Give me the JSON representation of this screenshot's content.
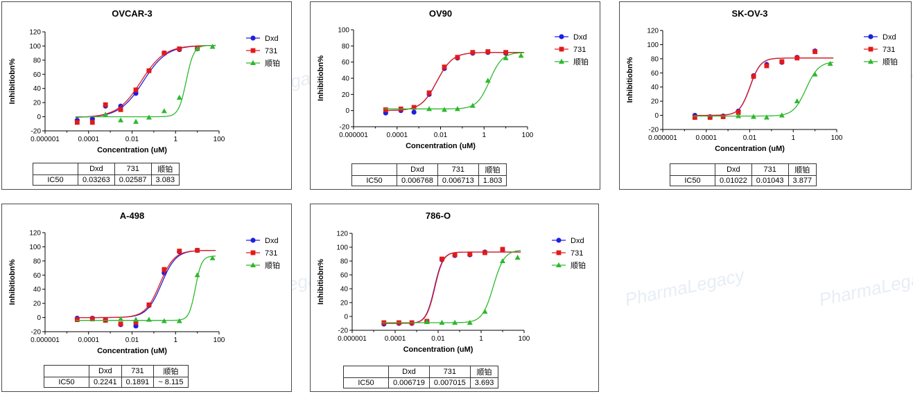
{
  "watermark": "PharmaLegacy",
  "xlabel": "Concentration (uM)",
  "ylabel": "Inhibitiobn%",
  "colors": {
    "dxd": "#1f1fe0",
    "c731": "#e21a1a",
    "cis": "#2db82d"
  },
  "chart_data": [
    {
      "type": "scatter",
      "title": "OVCAR-3",
      "xlabel": "Concentration (uM)",
      "ylabel": "Inhibitiobn%",
      "xscale": "log",
      "xlim": [
        1e-06,
        100
      ],
      "ylim": [
        -20,
        120
      ],
      "x_ticks": [
        "0.000001",
        "0.0001",
        "0.01",
        "1",
        "100"
      ],
      "y_ticks": [
        "-20",
        "0",
        "20",
        "40",
        "60",
        "80",
        "100",
        "120"
      ],
      "legend_position": "top-right",
      "series": [
        {
          "name": "Dxd",
          "x": [
            3e-05,
            0.00015,
            0.0006,
            0.003,
            0.015,
            0.06,
            0.3,
            1.5,
            10
          ],
          "y": [
            -5,
            -3,
            15,
            15,
            33,
            65,
            90,
            95,
            96
          ],
          "fit": {
            "bottom": -1,
            "top": 101,
            "ic50": 0.03263,
            "hill": 0.8
          }
        },
        {
          "name": "731",
          "x": [
            3e-05,
            0.00015,
            0.0006,
            0.003,
            0.015,
            0.06,
            0.3,
            1.5,
            10
          ],
          "y": [
            -8,
            -8,
            17,
            10,
            38,
            65,
            90,
            96,
            97
          ],
          "fit": {
            "bottom": -1,
            "top": 101,
            "ic50": 0.02587,
            "hill": 0.8
          }
        },
        {
          "name": "顺铂",
          "x": [
            0.0006,
            0.003,
            0.015,
            0.06,
            0.3,
            1.5,
            10,
            50
          ],
          "y": [
            3,
            -5,
            -7,
            -1,
            8,
            27,
            96,
            99
          ],
          "fit": {
            "bottom": 0,
            "top": 101,
            "ic50": 3.083,
            "hill": 2.5
          }
        }
      ],
      "ic50_table": {
        "header": [
          "",
          "Dxd",
          "731",
          "顺铂"
        ],
        "row": [
          "IC50",
          "0.03263",
          "0.02587",
          "3.083"
        ]
      }
    },
    {
      "type": "scatter",
      "title": "OV90",
      "xlabel": "Concentration (uM)",
      "ylabel": "Inhibitiobn%",
      "xscale": "log",
      "xlim": [
        1e-06,
        100
      ],
      "ylim": [
        -20,
        100
      ],
      "x_ticks": [
        "0.000001",
        "0.0001",
        "0.01",
        "1",
        "100"
      ],
      "y_ticks": [
        "-20",
        "0",
        "20",
        "40",
        "60",
        "80",
        "100"
      ],
      "legend_position": "top-right",
      "series": [
        {
          "name": "Dxd",
          "x": [
            3e-05,
            0.00015,
            0.0006,
            0.003,
            0.015,
            0.06,
            0.3,
            1.5,
            10
          ],
          "y": [
            -3,
            0,
            -2,
            20,
            52,
            65,
            71,
            72,
            71
          ],
          "fit": {
            "bottom": 0,
            "top": 72,
            "ic50": 0.006768,
            "hill": 1.2
          }
        },
        {
          "name": "731",
          "x": [
            3e-05,
            0.00015,
            0.0006,
            0.003,
            0.015,
            0.06,
            0.3,
            1.5,
            10
          ],
          "y": [
            1,
            2,
            4,
            22,
            54,
            66,
            72,
            73,
            72
          ],
          "fit": {
            "bottom": 0,
            "top": 72,
            "ic50": 0.006713,
            "hill": 1.2
          }
        },
        {
          "name": "顺铂",
          "x": [
            0.003,
            0.015,
            0.06,
            0.3,
            1.5,
            10,
            50
          ],
          "y": [
            2,
            1,
            2,
            6,
            37,
            65,
            68
          ],
          "fit": {
            "bottom": 2,
            "top": 72,
            "ic50": 1.803,
            "hill": 1.5
          }
        }
      ],
      "ic50_table": {
        "header": [
          "",
          "Dxd",
          "731",
          "顺铂"
        ],
        "row": [
          "IC50",
          "0.006768",
          "0.006713",
          "1.803"
        ]
      }
    },
    {
      "type": "scatter",
      "title": "SK-OV-3",
      "xlabel": "Concentration (uM)",
      "ylabel": "Inhibitiobn%",
      "xscale": "log",
      "xlim": [
        1e-06,
        100
      ],
      "ylim": [
        -20,
        120
      ],
      "x_ticks": [
        "0.000001",
        "0.0001",
        "0.01",
        "1",
        "100"
      ],
      "y_ticks": [
        "-20",
        "0",
        "20",
        "40",
        "60",
        "80",
        "100",
        "120"
      ],
      "legend_position": "top-right",
      "series": [
        {
          "name": "Dxd",
          "x": [
            3e-05,
            0.00015,
            0.0006,
            0.003,
            0.015,
            0.06,
            0.3,
            1.5,
            10
          ],
          "y": [
            0,
            -2,
            -1,
            6,
            56,
            72,
            75,
            82,
            91
          ],
          "fit": {
            "bottom": 0,
            "top": 81,
            "ic50": 0.01022,
            "hill": 1.8
          }
        },
        {
          "name": "731",
          "x": [
            3e-05,
            0.00015,
            0.0006,
            0.003,
            0.015,
            0.06,
            0.3,
            1.5,
            10
          ],
          "y": [
            -3,
            -3,
            -2,
            4,
            55,
            70,
            76,
            81,
            90
          ],
          "fit": {
            "bottom": 0,
            "top": 81,
            "ic50": 0.01043,
            "hill": 1.8
          }
        },
        {
          "name": "顺铂",
          "x": [
            0.003,
            0.015,
            0.06,
            0.3,
            1.5,
            10,
            50
          ],
          "y": [
            -1,
            -2,
            -3,
            0,
            20,
            58,
            73
          ],
          "fit": {
            "bottom": -1,
            "top": 76,
            "ic50": 3.877,
            "hill": 1.5
          }
        }
      ],
      "ic50_table": {
        "header": [
          "",
          "Dxd",
          "731",
          "顺铂"
        ],
        "row": [
          "IC50",
          "0.01022",
          "0.01043",
          "3.877"
        ]
      }
    },
    {
      "type": "scatter",
      "title": "A-498",
      "xlabel": "Concentration (uM)",
      "ylabel": "Inhibitiobn%",
      "xscale": "log",
      "xlim": [
        1e-06,
        100
      ],
      "ylim": [
        -20,
        120
      ],
      "x_ticks": [
        "0.000001",
        "0.0001",
        "0.01",
        "1",
        "100"
      ],
      "y_ticks": [
        "-20",
        "0",
        "20",
        "40",
        "60",
        "80",
        "100",
        "120"
      ],
      "legend_position": "top-right",
      "series": [
        {
          "name": "Dxd",
          "x": [
            3e-05,
            0.00015,
            0.0006,
            0.003,
            0.015,
            0.06,
            0.3,
            1.5,
            10
          ],
          "y": [
            -1,
            -1,
            -3,
            -10,
            -12,
            17,
            63,
            93,
            95
          ],
          "fit": {
            "bottom": 0,
            "top": 95,
            "ic50": 0.2241,
            "hill": 1.3
          }
        },
        {
          "name": "731",
          "x": [
            3e-05,
            0.00015,
            0.0006,
            0.003,
            0.015,
            0.06,
            0.3,
            1.5,
            10
          ],
          "y": [
            -3,
            -2,
            -4,
            -9,
            -7,
            18,
            68,
            94,
            95
          ],
          "fit": {
            "bottom": 0,
            "top": 95,
            "ic50": 0.1891,
            "hill": 1.3
          }
        },
        {
          "name": "顺铂",
          "x": [
            0.003,
            0.015,
            0.06,
            0.3,
            1.5,
            10,
            50
          ],
          "y": [
            -2,
            -3,
            -3,
            -5,
            -5,
            60,
            84
          ],
          "fit": {
            "bottom": -4,
            "top": 87,
            "ic50": 8.115,
            "hill": 3
          }
        }
      ],
      "ic50_table": {
        "header": [
          "",
          "Dxd",
          "731",
          "顺铂"
        ],
        "row": [
          "IC50",
          "0.2241",
          "0.1891",
          "~ 8.115"
        ]
      }
    },
    {
      "type": "scatter",
      "title": "786-O",
      "xlabel": "Concentration (uM)",
      "ylabel": "Inhibitiobn%",
      "xscale": "log",
      "xlim": [
        1e-06,
        100
      ],
      "ylim": [
        -20,
        120
      ],
      "x_ticks": [
        "0.000001",
        "0.0001",
        "0.01",
        "1",
        "100"
      ],
      "y_ticks": [
        "-20",
        "0",
        "20",
        "40",
        "60",
        "80",
        "100",
        "120"
      ],
      "legend_position": "top-right",
      "series": [
        {
          "name": "Dxd",
          "x": [
            3e-05,
            0.00015,
            0.0006,
            0.003,
            0.015,
            0.06,
            0.3,
            1.5,
            10
          ],
          "y": [
            -11,
            -10,
            -10,
            -7,
            82,
            88,
            89,
            93,
            96
          ],
          "fit": {
            "bottom": -10,
            "top": 93,
            "ic50": 0.006719,
            "hill": 2.2
          }
        },
        {
          "name": "731",
          "x": [
            3e-05,
            0.00015,
            0.0006,
            0.003,
            0.015,
            0.06,
            0.3,
            1.5,
            10
          ],
          "y": [
            -9,
            -9,
            -9,
            -7,
            83,
            89,
            90,
            92,
            97
          ],
          "fit": {
            "bottom": -10,
            "top": 93,
            "ic50": 0.007015,
            "hill": 2.2
          }
        },
        {
          "name": "顺铂",
          "x": [
            0.003,
            0.015,
            0.06,
            0.3,
            1.5,
            10,
            50
          ],
          "y": [
            -8,
            -9,
            -9,
            -9,
            7,
            80,
            85
          ],
          "fit": {
            "bottom": -9,
            "top": 96,
            "ic50": 3.693,
            "hill": 1.7
          }
        }
      ],
      "ic50_table": {
        "header": [
          "",
          "Dxd",
          "731",
          "顺铂"
        ],
        "row": [
          "IC50",
          "0.006719",
          "0.007015",
          "3.693"
        ]
      }
    }
  ]
}
